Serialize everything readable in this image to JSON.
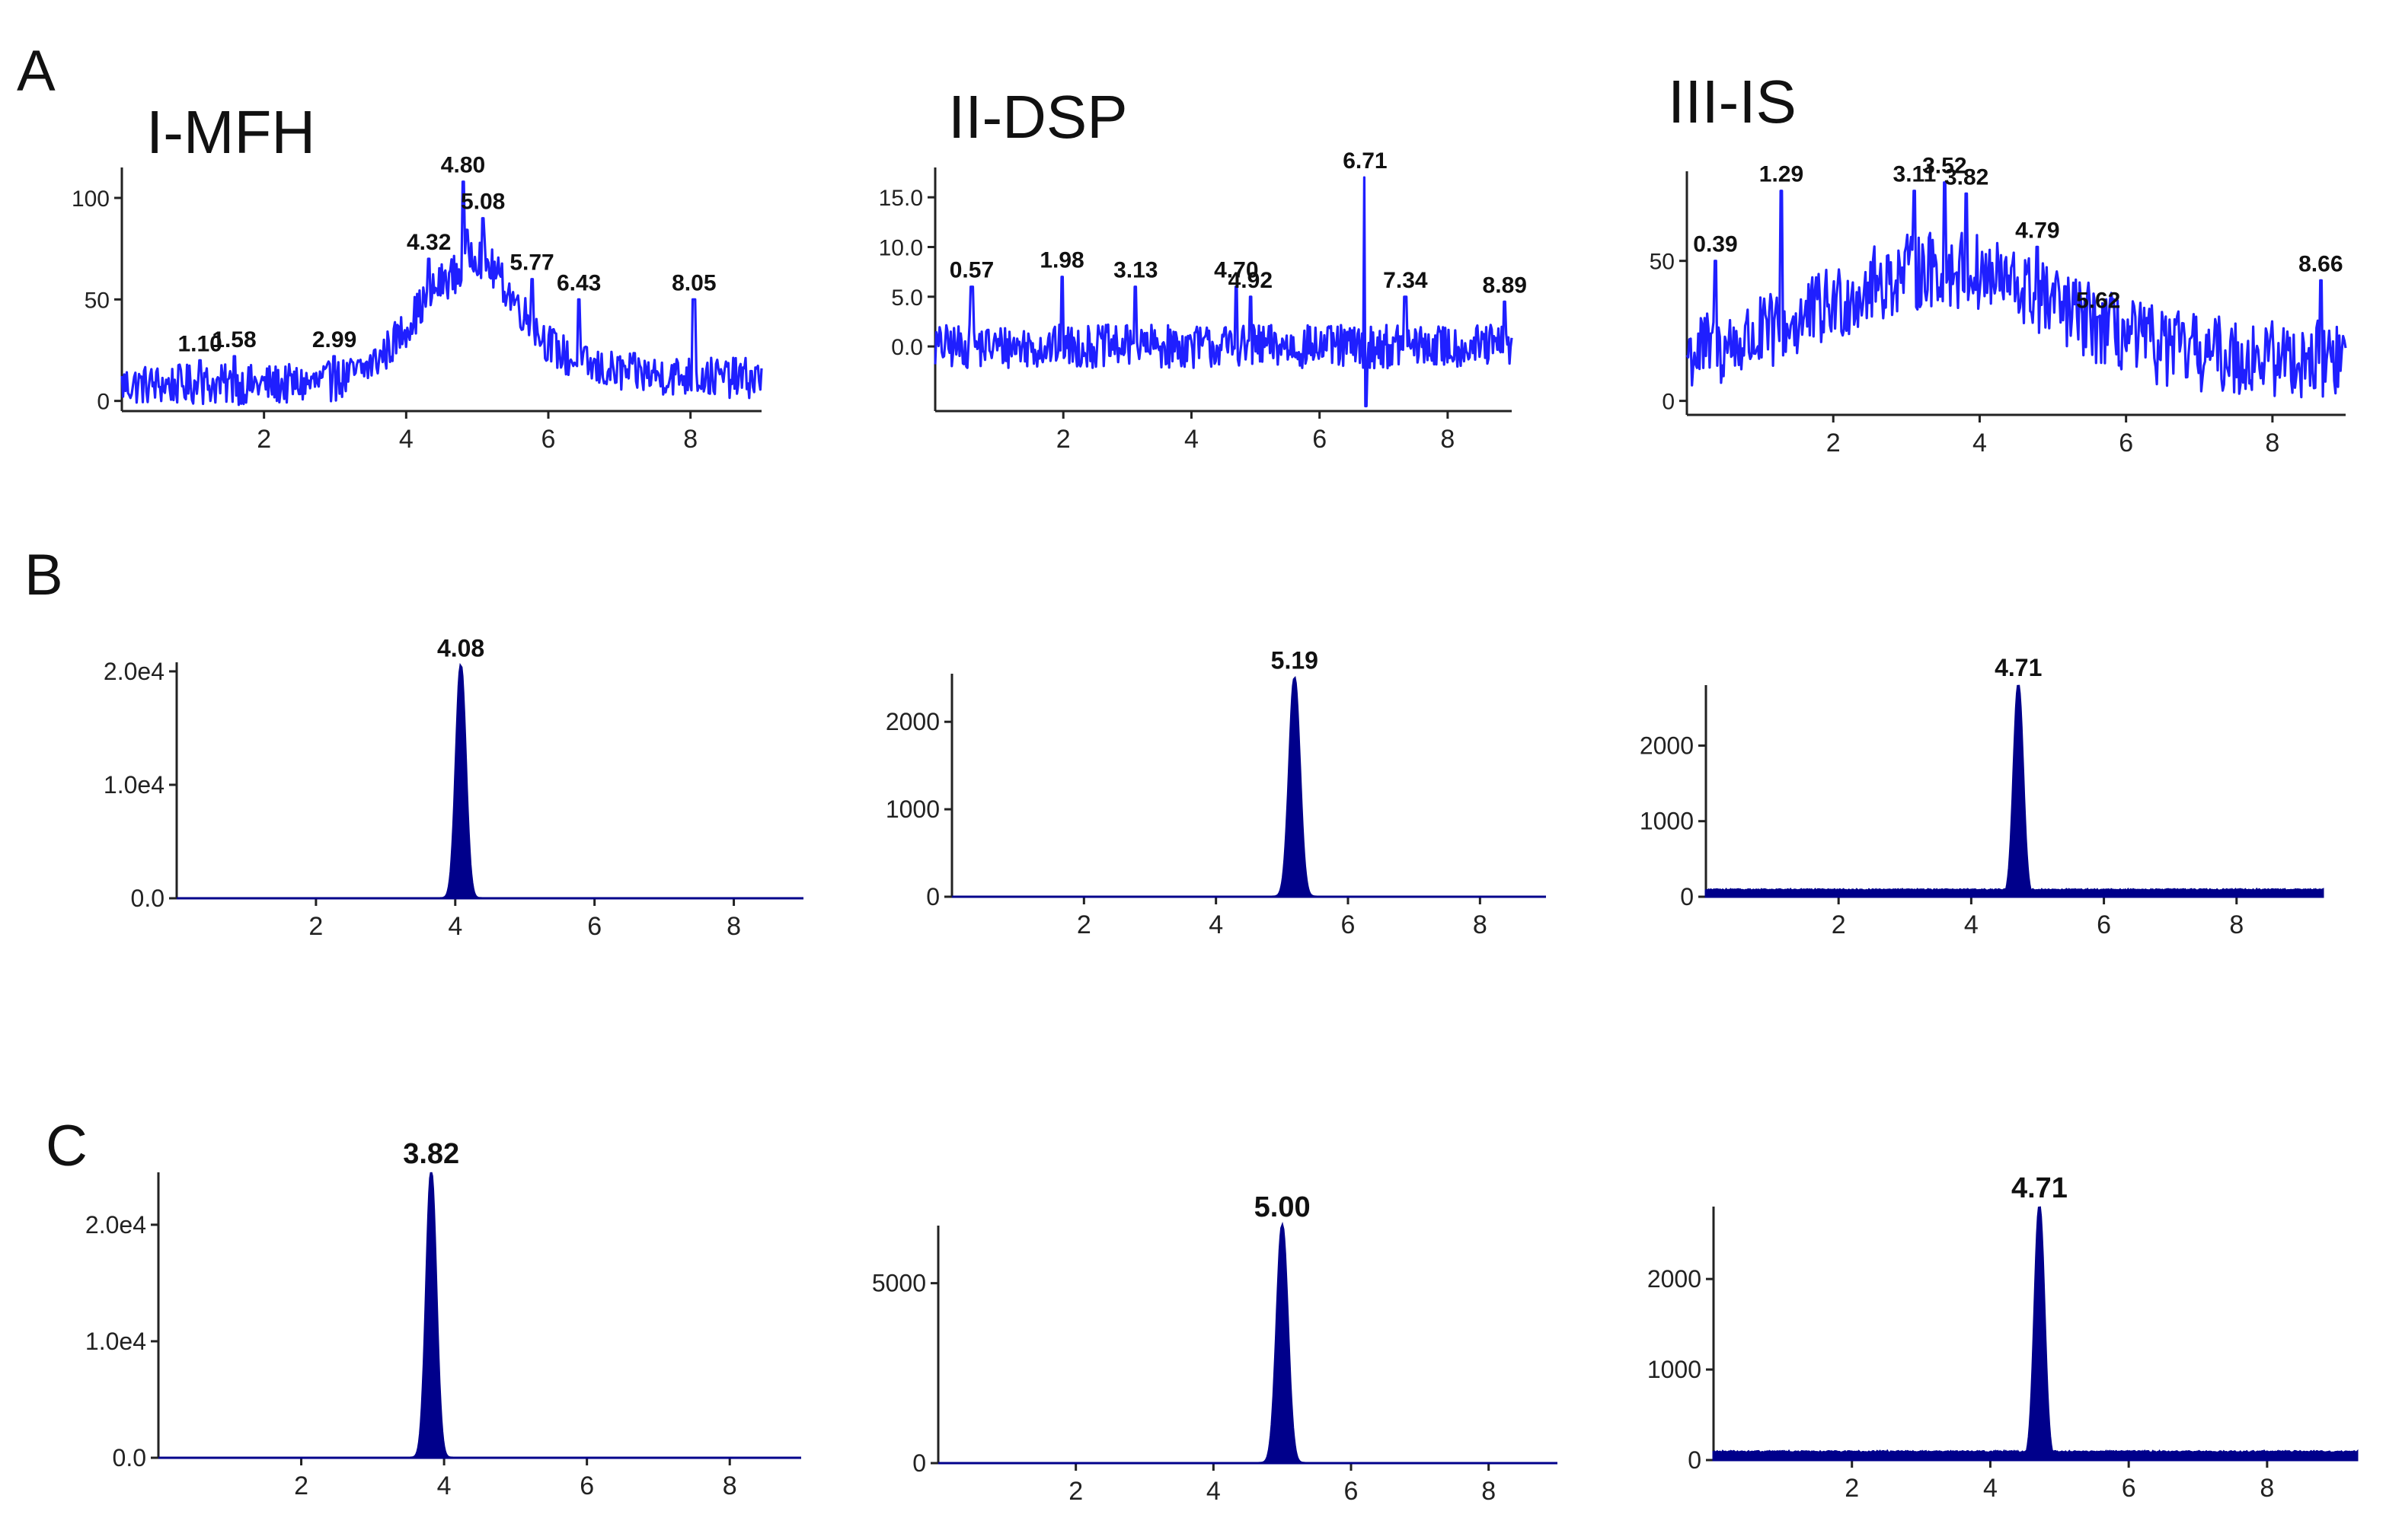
{
  "figure": {
    "row_labels": [
      "A",
      "B",
      "C"
    ],
    "column_titles": [
      "I-MFH",
      "II-DSP",
      "III-IS"
    ]
  },
  "chart_data": [
    {
      "panel": "A-I",
      "type": "line",
      "title": "I-MFH",
      "xlim": [
        0,
        9
      ],
      "ylim": [
        -5,
        115
      ],
      "xticks": [
        2,
        4,
        6,
        8
      ],
      "xtick_labels": [
        "2",
        "4",
        "6",
        "8"
      ],
      "yticks": [
        0,
        50,
        100
      ],
      "ytick_labels": [
        "0",
        "50",
        "100"
      ],
      "color": "#1f1fff",
      "style": "noise",
      "baseline": 8,
      "noise": 10,
      "hump": {
        "center": 4.8,
        "height": 55,
        "width": 0.7,
        "tail": 20
      },
      "peaks": [
        {
          "x": 1.1,
          "y": 20,
          "label": "1.10"
        },
        {
          "x": 1.58,
          "y": 22,
          "label": "1.58"
        },
        {
          "x": 2.99,
          "y": 22,
          "label": "2.99"
        },
        {
          "x": 4.32,
          "y": 70,
          "label": "4.32"
        },
        {
          "x": 4.8,
          "y": 108,
          "label": "4.80"
        },
        {
          "x": 5.08,
          "y": 90,
          "label": "5.08"
        },
        {
          "x": 5.77,
          "y": 60,
          "label": "5.77"
        },
        {
          "x": 6.43,
          "y": 50,
          "label": "6.43"
        },
        {
          "x": 8.05,
          "y": 50,
          "label": "8.05"
        }
      ]
    },
    {
      "panel": "A-II",
      "type": "line",
      "xlim": [
        0,
        9
      ],
      "ylim": [
        -6.5,
        18
      ],
      "xticks": [
        2,
        4,
        6,
        8
      ],
      "xtick_labels": [
        "2",
        "4",
        "6",
        "8"
      ],
      "yticks": [
        0,
        5,
        10,
        15
      ],
      "ytick_labels": [
        "0.0",
        "5.0",
        "10.0",
        "15.0"
      ],
      "color": "#1f1fff",
      "style": "noise",
      "baseline": 0,
      "noise": 2.2,
      "peaks": [
        {
          "x": 0.57,
          "y": 6,
          "label": "0.57"
        },
        {
          "x": 1.98,
          "y": 7,
          "label": "1.98"
        },
        {
          "x": 3.13,
          "y": 6,
          "label": "3.13"
        },
        {
          "x": 4.7,
          "y": 6,
          "label": "4.70"
        },
        {
          "x": 4.92,
          "y": 5,
          "label": "4.92"
        },
        {
          "x": 6.71,
          "y": 17,
          "dip": -6,
          "label": "6.71"
        },
        {
          "x": 7.34,
          "y": 5,
          "label": "7.34"
        },
        {
          "x": 8.89,
          "y": 4.5,
          "label": "8.89"
        }
      ]
    },
    {
      "panel": "A-III",
      "type": "line",
      "xlim": [
        0,
        9
      ],
      "ylim": [
        -5,
        82
      ],
      "xticks": [
        2,
        4,
        6,
        8
      ],
      "xtick_labels": [
        "2",
        "4",
        "6",
        "8"
      ],
      "yticks": [
        0,
        50
      ],
      "ytick_labels": [
        "0",
        "50"
      ],
      "color": "#1f1fff",
      "style": "noise",
      "baseline": 15,
      "noise": 14,
      "hump": {
        "center": 3.5,
        "height": 32,
        "width": 1.5,
        "tail": 0
      },
      "peaks": [
        {
          "x": 0.39,
          "y": 50,
          "label": "0.39"
        },
        {
          "x": 1.29,
          "y": 75,
          "label": "1.29"
        },
        {
          "x": 3.11,
          "y": 75,
          "label": "3.11"
        },
        {
          "x": 3.52,
          "y": 78,
          "label": "3.52"
        },
        {
          "x": 3.82,
          "y": 74,
          "label": "3.82"
        },
        {
          "x": 4.79,
          "y": 55,
          "label": "4.79"
        },
        {
          "x": 5.62,
          "y": 30,
          "label": "5.62"
        },
        {
          "x": 8.66,
          "y": 43,
          "label": "8.66"
        }
      ]
    },
    {
      "panel": "B-I",
      "type": "line",
      "xlim": [
        0,
        9
      ],
      "ylim": [
        0,
        20800
      ],
      "xticks": [
        2,
        4,
        6,
        8
      ],
      "xtick_labels": [
        "2",
        "4",
        "6",
        "8"
      ],
      "yticks": [
        0,
        10000,
        20000
      ],
      "ytick_labels": [
        "0.0",
        "1.0e4",
        "2.0e4"
      ],
      "color": "#00008b",
      "style": "peak",
      "baseline": 0,
      "noise": 0,
      "peaks": [
        {
          "x": 4.08,
          "y": 20500,
          "width": 0.07,
          "label": "4.08"
        }
      ]
    },
    {
      "panel": "B-II",
      "type": "line",
      "xlim": [
        0,
        9
      ],
      "ylim": [
        0,
        2550
      ],
      "xticks": [
        2,
        4,
        6,
        8
      ],
      "xtick_labels": [
        "2",
        "4",
        "6",
        "8"
      ],
      "yticks": [
        0,
        1000,
        2000
      ],
      "ytick_labels": [
        "0",
        "1000",
        "2000"
      ],
      "color": "#00008b",
      "style": "peak",
      "baseline": 0,
      "noise": 0,
      "peaks": [
        {
          "x": 5.19,
          "y": 2500,
          "width": 0.08,
          "label": "5.19"
        }
      ]
    },
    {
      "panel": "B-III",
      "type": "line",
      "xlim": [
        0,
        9.3
      ],
      "ylim": [
        0,
        2800
      ],
      "xticks": [
        2,
        4,
        6,
        8
      ],
      "xtick_labels": [
        "2",
        "4",
        "6",
        "8"
      ],
      "yticks": [
        0,
        1000,
        2000
      ],
      "ytick_labels": [
        "0",
        "1000",
        "2000"
      ],
      "color": "#00008b",
      "style": "peak",
      "baseline": 80,
      "noise": 35,
      "peaks": [
        {
          "x": 4.71,
          "y": 2800,
          "width": 0.07,
          "label": "4.71"
        }
      ]
    },
    {
      "panel": "C-I",
      "type": "line",
      "xlim": [
        0,
        9
      ],
      "ylim": [
        0,
        24500
      ],
      "xticks": [
        2,
        4,
        6,
        8
      ],
      "xtick_labels": [
        "2",
        "4",
        "6",
        "8"
      ],
      "yticks": [
        0,
        10000,
        20000
      ],
      "ytick_labels": [
        "0.0",
        "1.0e4",
        "2.0e4"
      ],
      "color": "#00008b",
      "style": "peak",
      "baseline": 0,
      "noise": 0,
      "peaks": [
        {
          "x": 3.82,
          "y": 24500,
          "width": 0.07,
          "label": "3.82"
        }
      ]
    },
    {
      "panel": "C-II",
      "type": "line",
      "xlim": [
        0,
        9
      ],
      "ylim": [
        0,
        6600
      ],
      "xticks": [
        2,
        4,
        6,
        8
      ],
      "xtick_labels": [
        "2",
        "4",
        "6",
        "8"
      ],
      "yticks": [
        0,
        5000
      ],
      "ytick_labels": [
        "0",
        "5000"
      ],
      "color": "#00008b",
      "style": "peak",
      "baseline": 0,
      "noise": 0,
      "peaks": [
        {
          "x": 5.0,
          "y": 6600,
          "width": 0.08,
          "label": "5.00"
        }
      ]
    },
    {
      "panel": "C-III",
      "type": "line",
      "xlim": [
        0,
        9.3
      ],
      "ylim": [
        0,
        2800
      ],
      "xticks": [
        2,
        4,
        6,
        8
      ],
      "xtick_labels": [
        "2",
        "4",
        "6",
        "8"
      ],
      "yticks": [
        0,
        1000,
        2000
      ],
      "ytick_labels": [
        "0",
        "1000",
        "2000"
      ],
      "color": "#00008b",
      "style": "peak",
      "baseline": 80,
      "noise": 35,
      "peaks": [
        {
          "x": 4.71,
          "y": 2800,
          "width": 0.07,
          "label": "4.71"
        }
      ]
    }
  ]
}
